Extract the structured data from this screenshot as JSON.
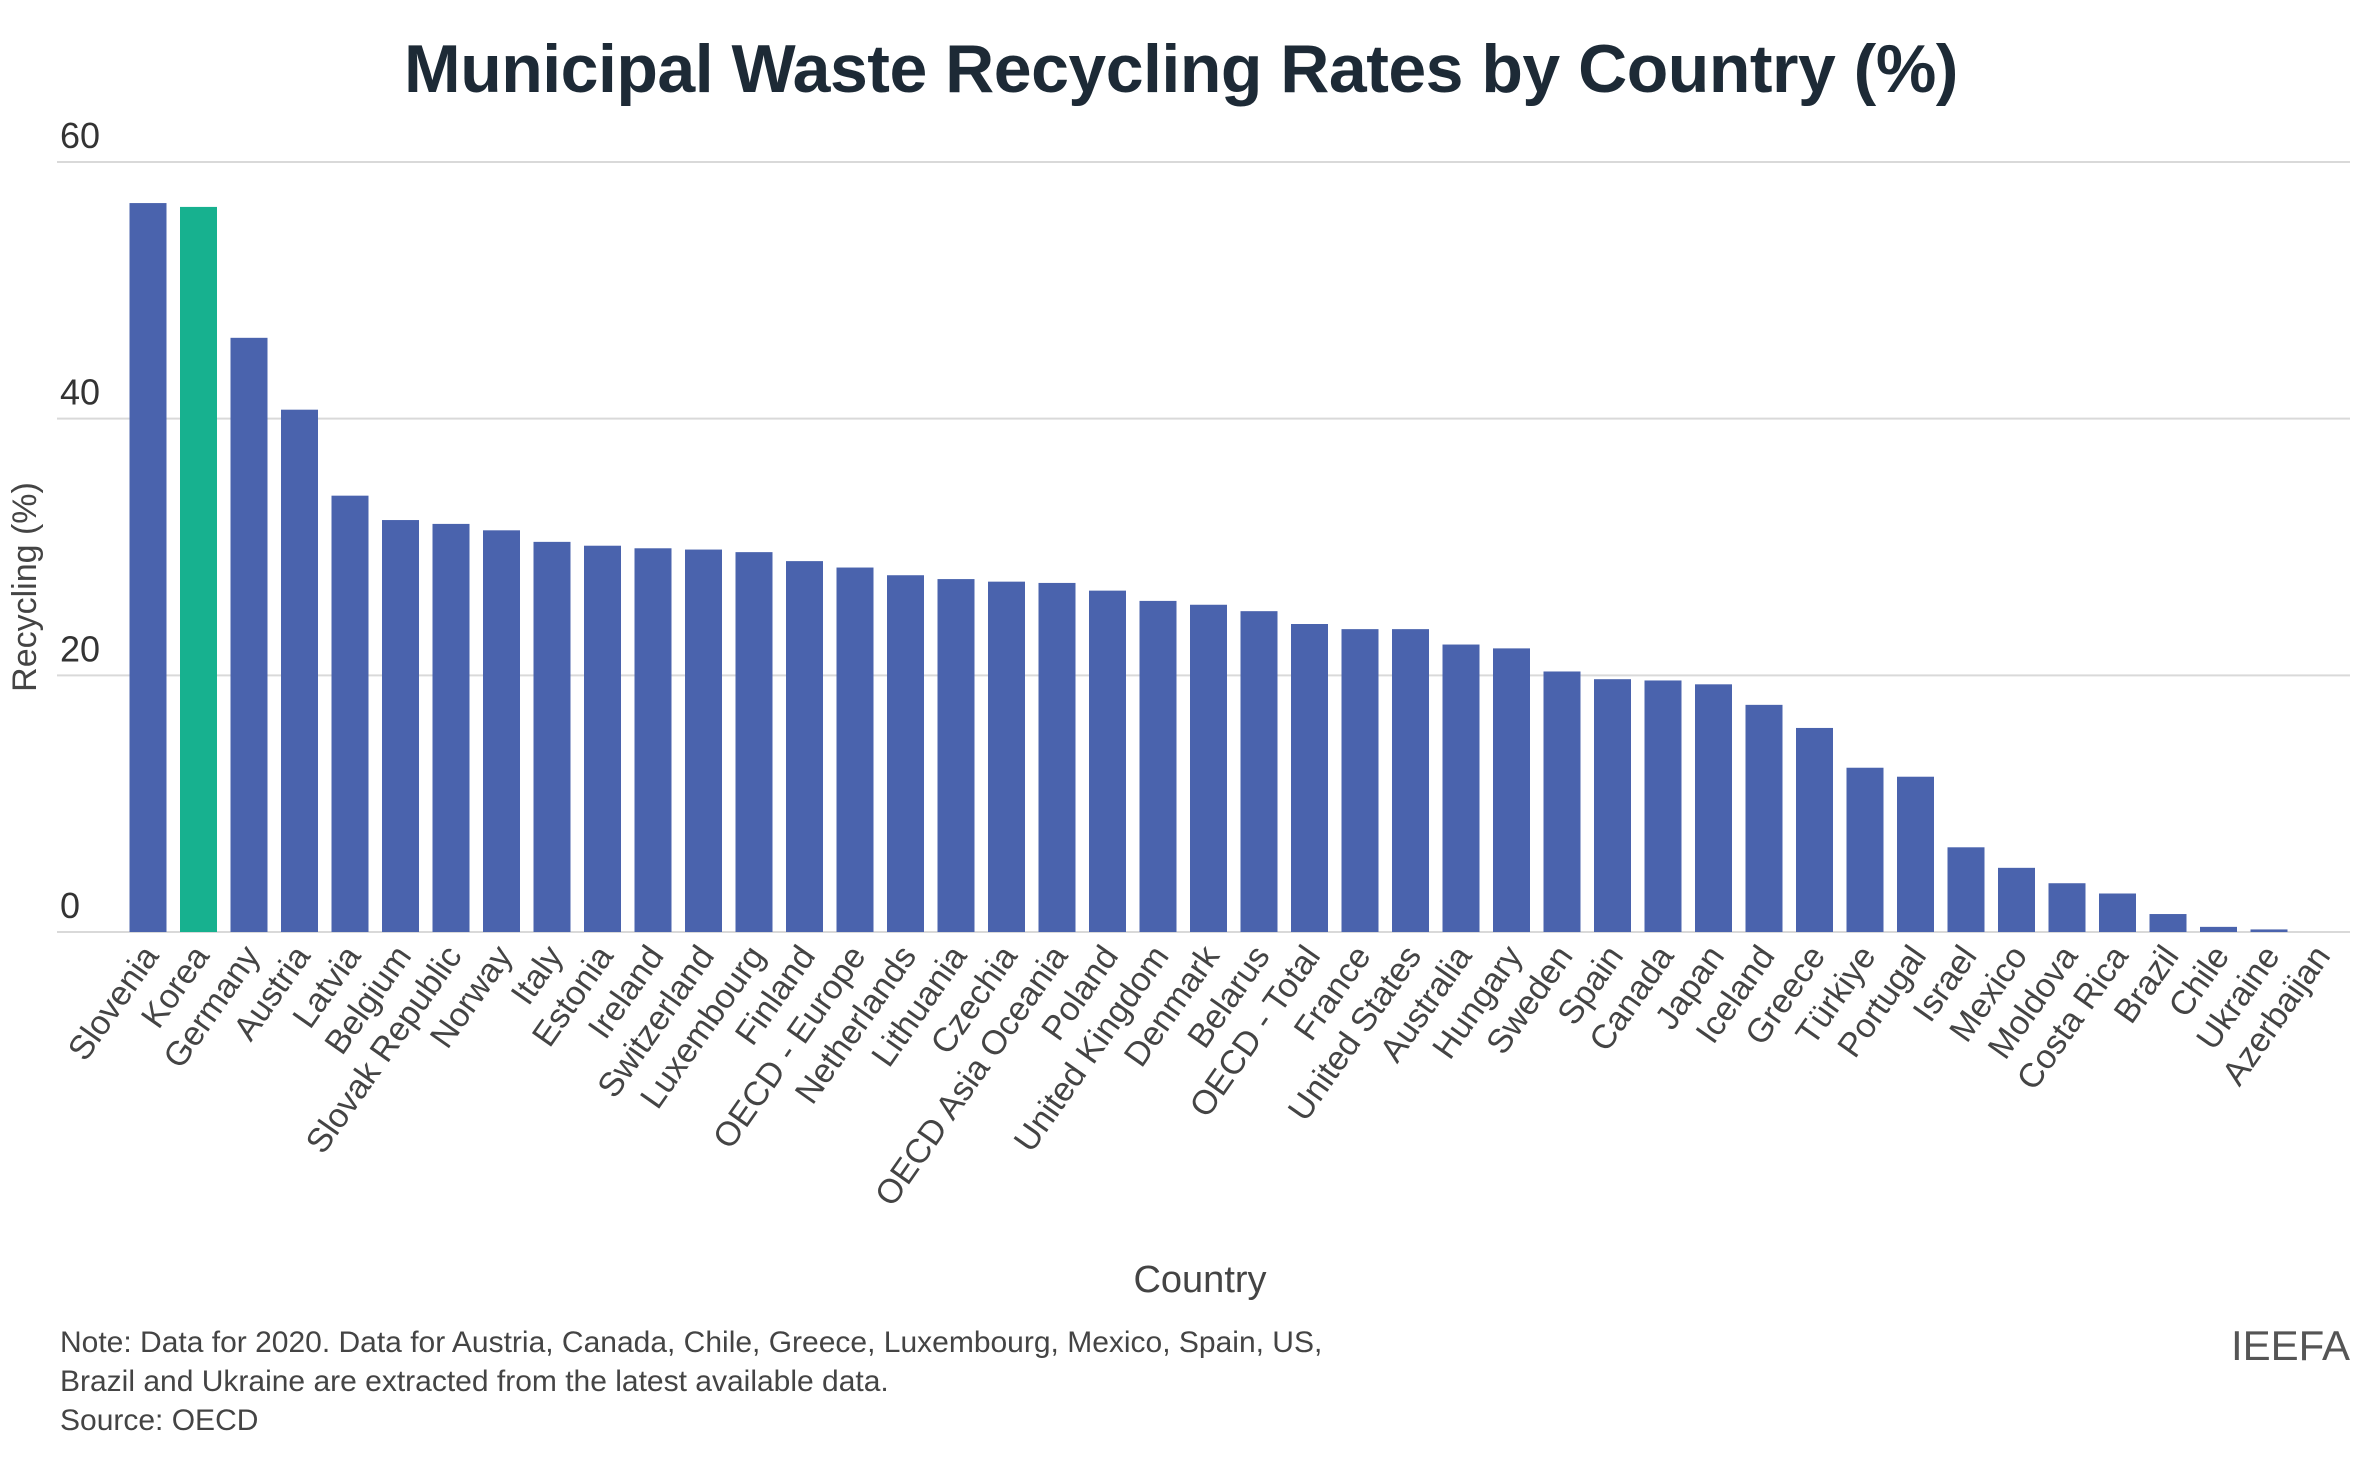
{
  "chart_data": {
    "type": "bar",
    "title": "Municipal Waste Recycling Rates by Country (%)",
    "xlabel": "Country",
    "ylabel": "Recycling (%)",
    "ylim": [
      0,
      60
    ],
    "yticks": [
      0,
      20,
      40,
      60
    ],
    "grid": true,
    "legend": "none",
    "colors": {
      "default": "#4a63ad",
      "highlight": "#17b18f"
    },
    "highlight": "Korea",
    "categories": [
      "Slovenia",
      "Korea",
      "Germany",
      "Austria",
      "Latvia",
      "Belgium",
      "Slovak Republic",
      "Norway",
      "Italy",
      "Estonia",
      "Ireland",
      "Switzerland",
      "Luxembourg",
      "Finland",
      "OECD - Europe",
      "Netherlands",
      "Lithuania",
      "Czechia",
      "OECD Asia Oceania",
      "Poland",
      "United Kingdom",
      "Denmark",
      "Belarus",
      "OECD - Total",
      "France",
      "United States",
      "Australia",
      "Hungary",
      "Sweden",
      "Spain",
      "Canada",
      "Japan",
      "Iceland",
      "Greece",
      "Türkiye",
      "Portugal",
      "Israel",
      "Mexico",
      "Moldova",
      "Costa Rica",
      "Brazil",
      "Chile",
      "Ukraine",
      "Azerbaijan"
    ],
    "values": [
      56.8,
      56.5,
      46.3,
      40.7,
      34.0,
      32.1,
      31.8,
      31.3,
      30.4,
      30.1,
      29.9,
      29.8,
      29.6,
      28.9,
      28.4,
      27.8,
      27.5,
      27.3,
      27.2,
      26.6,
      25.8,
      25.5,
      25.0,
      24.0,
      23.6,
      23.6,
      22.4,
      22.1,
      20.3,
      19.7,
      19.6,
      19.3,
      17.7,
      15.9,
      12.8,
      12.1,
      6.6,
      5.0,
      3.8,
      3.0,
      1.4,
      0.4,
      0.2,
      0.0
    ]
  },
  "footer": {
    "note_line1": "Note: Data for 2020. Data for Austria, Canada, Chile, Greece, Luxembourg, Mexico, Spain, US,",
    "note_line2": "Brazil and Ukraine are extracted from the latest available data.",
    "source": "Source: OECD",
    "brand": "IEEFA"
  }
}
